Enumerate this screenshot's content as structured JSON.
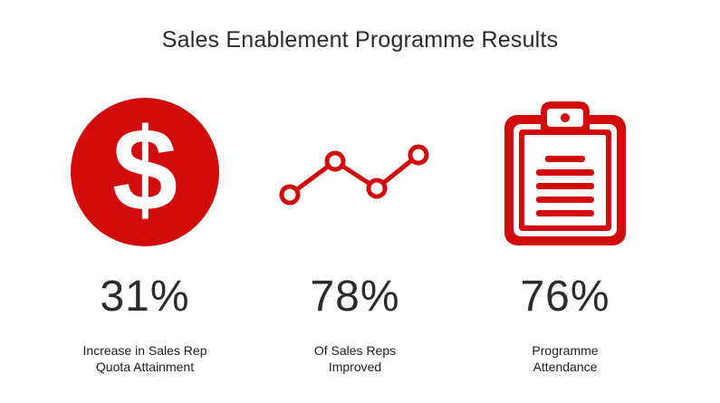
{
  "title": "Sales Enablement Programme Results",
  "accent_color": "#d10a0a",
  "stats": [
    {
      "icon": "dollar-circle-icon",
      "value": "31%",
      "label_lines": [
        "Increase in Sales Rep",
        "Quota Attainment"
      ]
    },
    {
      "icon": "line-trend-icon",
      "value": "78%",
      "label_lines": [
        "Of Sales Reps",
        "Improved"
      ]
    },
    {
      "icon": "clipboard-icon",
      "value": "76%",
      "label_lines": [
        "Programme",
        "Attendance"
      ]
    }
  ]
}
